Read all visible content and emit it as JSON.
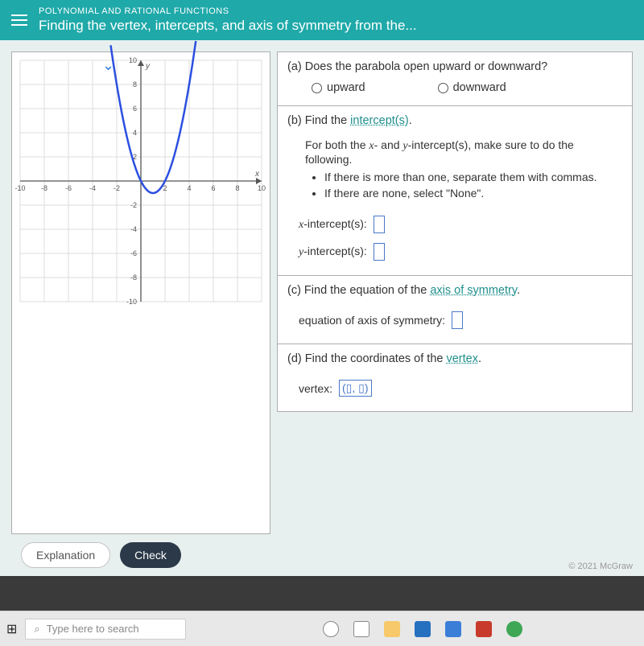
{
  "header": {
    "category": "POLYNOMIAL AND RATIONAL FUNCTIONS",
    "title": "Finding the vertex, intercepts, and axis of symmetry from the...",
    "bg_color": "#1fa9a9"
  },
  "graph": {
    "xlim": [
      -10,
      10
    ],
    "ylim": [
      -10,
      10
    ],
    "tick_step": 2,
    "xticks_neg": [
      -10,
      -8,
      -6,
      -4,
      -2
    ],
    "xticks_pos": [
      2,
      4,
      6,
      8,
      10
    ],
    "yticks_pos": [
      10,
      8,
      6,
      4,
      2
    ],
    "yticks_neg": [
      -2,
      -4,
      -6,
      -8,
      -10
    ],
    "x_axis_label": "x",
    "y_axis_label": "y",
    "grid_color": "#dedede",
    "axis_color": "#555555",
    "curve_color": "#2b4fe0",
    "curve_width": 2.5,
    "parabola": {
      "vertex_x": 1,
      "vertex_y": -1,
      "passes_through": [
        [
          -2,
          8
        ],
        [
          4,
          8
        ]
      ]
    }
  },
  "questions": {
    "a": {
      "prompt": "(a) Does the parabola open upward or downward?",
      "options": {
        "upward": "upward",
        "downward": "downward"
      }
    },
    "b": {
      "prompt_prefix": "(b) Find the ",
      "link_text": "intercept(s)",
      "prompt_suffix": ".",
      "instruction_lead": "For both the x- and y-intercept(s), make sure to do the following.",
      "bullet1": "If there is more than one, separate them with commas.",
      "bullet2": "If there are none, select \"None\".",
      "x_label": "x-intercept(s):",
      "y_label": "y-intercept(s):"
    },
    "c": {
      "prompt_prefix": "(c) Find the equation of the ",
      "link_text": "axis of symmetry",
      "prompt_suffix": ".",
      "input_label": "equation of axis of symmetry:"
    },
    "d": {
      "prompt_prefix": "(d) Find the coordinates of the ",
      "link_text": "vertex",
      "prompt_suffix": ".",
      "input_label": "vertex:",
      "placeholder": "(▯, ▯)"
    }
  },
  "buttons": {
    "explanation": "Explanation",
    "check": "Check"
  },
  "footer": {
    "copyright": "© 2021 McGraw"
  },
  "taskbar": {
    "search_placeholder": "Type here to search",
    "icons": [
      {
        "name": "cortana",
        "color": "#ffffff",
        "border": "#888"
      },
      {
        "name": "task-view",
        "color": "#ffffff",
        "border": "#888"
      },
      {
        "name": "explorer",
        "color": "#f8c96b"
      },
      {
        "name": "edge",
        "color": "#2670c0"
      },
      {
        "name": "mail",
        "color": "#3a7ed8"
      },
      {
        "name": "mcafee",
        "color": "#c83a2b"
      },
      {
        "name": "chrome",
        "color": "#3da756"
      }
    ]
  }
}
